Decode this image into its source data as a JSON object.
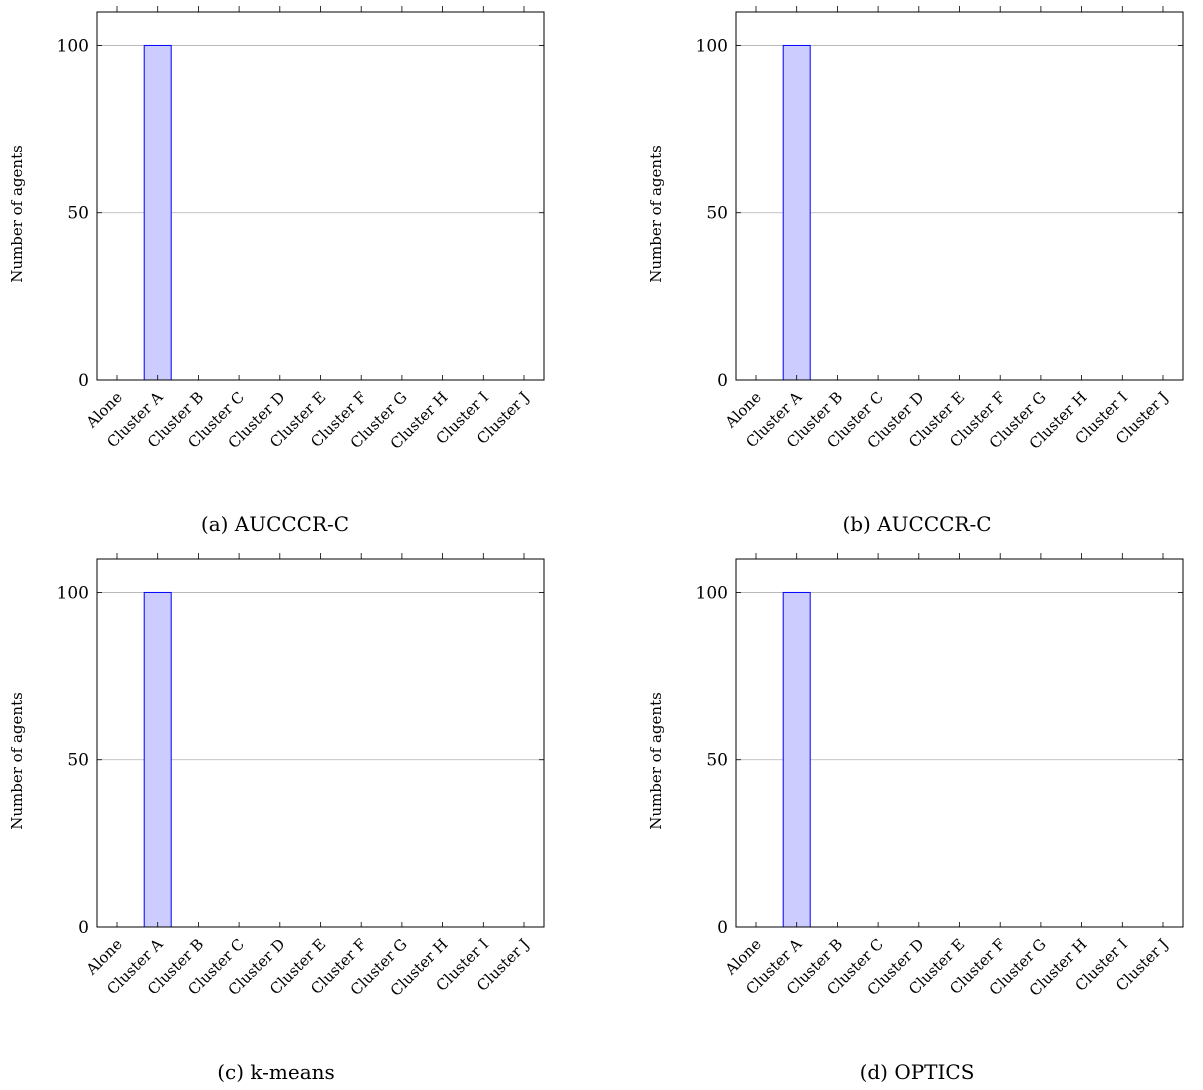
{
  "chart_data": [
    {
      "type": "bar",
      "caption": "(a) AUCCCR-C",
      "categories": [
        "Alone",
        "Cluster A",
        "Cluster B",
        "Cluster C",
        "Cluster D",
        "Cluster E",
        "Cluster F",
        "Cluster G",
        "Cluster H",
        "Cluster I",
        "Cluster J"
      ],
      "values": [
        0,
        100,
        0,
        0,
        0,
        0,
        0,
        0,
        0,
        0,
        0
      ],
      "ylabel": "Number of agents",
      "ylim": [
        0,
        110
      ],
      "yticks": [
        0,
        50,
        100
      ],
      "grid": "horizontal",
      "colors": {
        "bar_fill": "#ccccff",
        "bar_stroke": "#0000ff",
        "grid": "#b0b0b0"
      }
    },
    {
      "type": "bar",
      "caption": "(b) AUCCCR-C",
      "categories": [
        "Alone",
        "Cluster A",
        "Cluster B",
        "Cluster C",
        "Cluster D",
        "Cluster E",
        "Cluster F",
        "Cluster G",
        "Cluster H",
        "Cluster I",
        "Cluster J"
      ],
      "values": [
        0,
        100,
        0,
        0,
        0,
        0,
        0,
        0,
        0,
        0,
        0
      ],
      "ylabel": "Number of agents",
      "ylim": [
        0,
        110
      ],
      "yticks": [
        0,
        50,
        100
      ],
      "grid": "horizontal",
      "colors": {
        "bar_fill": "#ccccff",
        "bar_stroke": "#0000ff",
        "grid": "#b0b0b0"
      }
    },
    {
      "type": "bar",
      "caption": "(c) k-means",
      "categories": [
        "Alone",
        "Cluster A",
        "Cluster B",
        "Cluster C",
        "Cluster D",
        "Cluster E",
        "Cluster F",
        "Cluster G",
        "Cluster H",
        "Cluster I",
        "Cluster J"
      ],
      "values": [
        0,
        100,
        0,
        0,
        0,
        0,
        0,
        0,
        0,
        0,
        0
      ],
      "ylabel": "Number of agents",
      "ylim": [
        0,
        110
      ],
      "yticks": [
        0,
        50,
        100
      ],
      "grid": "horizontal",
      "colors": {
        "bar_fill": "#ccccff",
        "bar_stroke": "#0000ff",
        "grid": "#b0b0b0"
      }
    },
    {
      "type": "bar",
      "caption": "(d) OPTICS",
      "categories": [
        "Alone",
        "Cluster A",
        "Cluster B",
        "Cluster C",
        "Cluster D",
        "Cluster E",
        "Cluster F",
        "Cluster G",
        "Cluster H",
        "Cluster I",
        "Cluster J"
      ],
      "values": [
        0,
        100,
        0,
        0,
        0,
        0,
        0,
        0,
        0,
        0,
        0
      ],
      "ylabel": "Number of agents",
      "ylim": [
        0,
        110
      ],
      "yticks": [
        0,
        50,
        100
      ],
      "grid": "horizontal",
      "colors": {
        "bar_fill": "#ccccff",
        "bar_stroke": "#0000ff",
        "grid": "#b0b0b0"
      }
    }
  ]
}
